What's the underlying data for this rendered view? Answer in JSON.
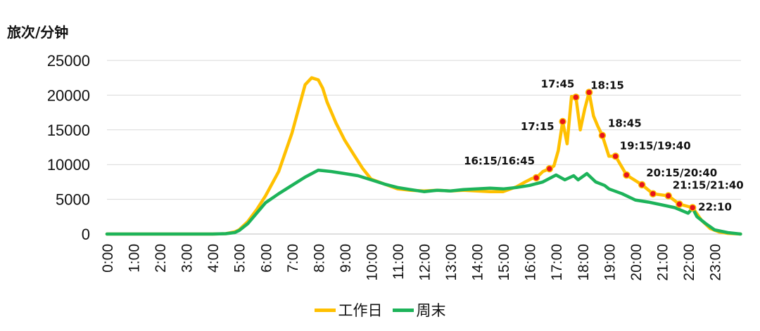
{
  "chart_data": {
    "type": "line",
    "ylabel": "旅次/分钟",
    "xlabel": "",
    "ylim": [
      0,
      25000
    ],
    "yticks": [
      0,
      5000,
      10000,
      15000,
      20000,
      25000
    ],
    "xticks": [
      "0:00",
      "1:00",
      "2:00",
      "3:00",
      "4:00",
      "5:00",
      "6:00",
      "7:00",
      "8:00",
      "9:00",
      "10:00",
      "11:00",
      "12:00",
      "13:00",
      "14:00",
      "15:00",
      "16:00",
      "17:00",
      "18:00",
      "19:00",
      "20:00",
      "21:00",
      "22:00",
      "23:00"
    ],
    "grid": true,
    "legend": "bottom-center",
    "series": [
      {
        "name": "工作日",
        "color": "#FFC000",
        "x": [
          "0:00",
          "1:00",
          "2:00",
          "3:00",
          "4:00",
          "4:30",
          "4:50",
          "5:00",
          "5:20",
          "5:40",
          "6:00",
          "6:30",
          "7:00",
          "7:15",
          "7:30",
          "7:45",
          "8:00",
          "8:10",
          "8:20",
          "8:40",
          "9:00",
          "9:20",
          "9:40",
          "10:00",
          "10:30",
          "11:00",
          "11:30",
          "12:00",
          "12:30",
          "13:00",
          "13:30",
          "14:00",
          "14:30",
          "15:00",
          "15:30",
          "15:50",
          "16:05",
          "16:15",
          "16:30",
          "16:45",
          "16:55",
          "17:05",
          "17:15",
          "17:25",
          "17:35",
          "17:45",
          "17:55",
          "18:05",
          "18:15",
          "18:25",
          "18:35",
          "18:45",
          "19:00",
          "19:15",
          "19:40",
          "20:15",
          "20:40",
          "21:15",
          "21:40",
          "22:10",
          "22:30",
          "22:50",
          "23:10",
          "23:30",
          "23:59"
        ],
        "y": [
          0,
          0,
          0,
          0,
          0,
          50,
          300,
          600,
          1800,
          3500,
          5500,
          9000,
          14500,
          18000,
          21500,
          22500,
          22200,
          21000,
          19000,
          16000,
          13500,
          11500,
          9500,
          7900,
          7200,
          6500,
          6300,
          6200,
          6300,
          6200,
          6300,
          6200,
          6100,
          6100,
          6800,
          7500,
          8000,
          8100,
          9000,
          9400,
          9800,
          12000,
          16200,
          13000,
          19800,
          19700,
          15000,
          18000,
          20400,
          17000,
          15500,
          14200,
          11200,
          11200,
          8500,
          7100,
          5800,
          5500,
          4300,
          3800,
          2000,
          800,
          300,
          100,
          0
        ]
      },
      {
        "name": "周末",
        "color": "#1DB35A",
        "x": [
          "0:00",
          "1:00",
          "2:00",
          "3:00",
          "4:00",
          "4:30",
          "4:50",
          "5:00",
          "5:20",
          "5:40",
          "6:00",
          "6:30",
          "7:00",
          "7:30",
          "8:00",
          "8:30",
          "9:00",
          "9:30",
          "10:00",
          "10:30",
          "11:00",
          "11:30",
          "12:00",
          "12:30",
          "13:00",
          "13:30",
          "14:00",
          "14:30",
          "15:00",
          "15:30",
          "16:00",
          "16:30",
          "17:00",
          "17:20",
          "17:40",
          "17:50",
          "18:10",
          "18:30",
          "18:50",
          "19:00",
          "19:30",
          "20:00",
          "20:30",
          "21:00",
          "21:30",
          "22:00",
          "22:10",
          "22:20",
          "22:40",
          "23:00",
          "23:30",
          "23:59"
        ],
        "y": [
          0,
          0,
          0,
          0,
          0,
          50,
          200,
          500,
          1500,
          3000,
          4500,
          5800,
          7000,
          8200,
          9200,
          9000,
          8700,
          8400,
          7800,
          7200,
          6700,
          6400,
          6100,
          6300,
          6200,
          6400,
          6500,
          6600,
          6500,
          6700,
          7000,
          7500,
          8500,
          7800,
          8400,
          7800,
          8700,
          7500,
          7000,
          6500,
          5800,
          4900,
          4600,
          4200,
          3800,
          3000,
          3700,
          2500,
          1500,
          600,
          200,
          0
        ]
      }
    ],
    "annotations": [
      {
        "label": "16:15/16:45",
        "points": [
          {
            "x": "16:15",
            "y": 8100
          },
          {
            "x": "16:45",
            "y": 9400
          }
        ]
      },
      {
        "label": "17:15",
        "points": [
          {
            "x": "17:15",
            "y": 16200
          }
        ]
      },
      {
        "label": "17:45",
        "points": [
          {
            "x": "17:45",
            "y": 19700
          }
        ]
      },
      {
        "label": "18:15",
        "points": [
          {
            "x": "18:15",
            "y": 20400
          }
        ]
      },
      {
        "label": "18:45",
        "points": [
          {
            "x": "18:45",
            "y": 14200
          }
        ]
      },
      {
        "label": "19:15/19:40",
        "points": [
          {
            "x": "19:15",
            "y": 11200
          },
          {
            "x": "19:40",
            "y": 8500
          }
        ]
      },
      {
        "label": "20:15/20:40",
        "points": [
          {
            "x": "20:15",
            "y": 7100
          },
          {
            "x": "20:40",
            "y": 5800
          }
        ]
      },
      {
        "label": "21:15/21:40",
        "points": [
          {
            "x": "21:15",
            "y": 5500
          },
          {
            "x": "21:40",
            "y": 4300
          }
        ]
      },
      {
        "label": "22:10",
        "points": [
          {
            "x": "22:10",
            "y": 3800
          }
        ]
      }
    ]
  }
}
